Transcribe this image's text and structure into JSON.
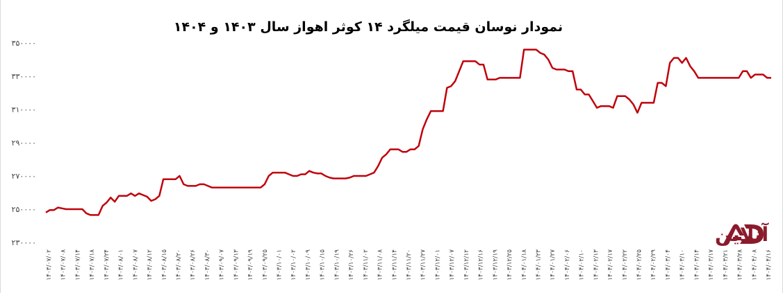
{
  "chart_data": {
    "type": "line",
    "title": "نمودار نوسان قیمت میلگرد ۱۴ کوثر اهواز سال ۱۴۰۳ و ۱۴۰۴",
    "xlabel": "",
    "ylabel": "",
    "ylim": [
      230000,
      350000
    ],
    "yticks": [
      230000,
      250000,
      270000,
      290000,
      310000,
      330000,
      350000
    ],
    "ytick_labels": [
      "۲۳۰۰۰۰",
      "۲۵۰۰۰۰",
      "۲۷۰۰۰۰",
      "۲۹۰۰۰۰",
      "۳۱۰۰۰۰",
      "۳۳۰۰۰۰",
      "۳۵۰۰۰۰"
    ],
    "xtick_labels": [
      "۱۴۰۳/۰۷/۰۲",
      "۱۴۰۳/۰۷/۰۸",
      "۱۴۰۳/۰۷/۱۴",
      "۱۴۰۳/۰۷/۱۸",
      "۱۴۰۳/۰۷/۲۴",
      "۱۴۰۳/۰۸/۰۱",
      "۱۴۰۳/۰۸/۰۷",
      "۱۴۰۳/۰۸/۱۲",
      "۱۴۰۳/۰۸/۱۵",
      "۱۴۰۳/۰۸/۲۰",
      "۱۴۰۳/۰۸/۲۶",
      "۱۴۰۳/۰۸/۳۰",
      "۱۴۰۳/۰۹/۰۷",
      "۱۴۰۳/۰۹/۱۳",
      "۱۴۰۳/۰۹/۱۹",
      "۱۴۰۳/۰۹/۲۵",
      "۱۴۰۳/۱۰/۰۱",
      "۱۴۰۳/۱۰/۰۲",
      "۱۴۰۳/۱۰/۰۹",
      "۱۴۰۳/۱۰/۱۵",
      "۱۴۰۳/۱۰/۱۹",
      "۱۴۰۳/۱۰/۲۶",
      "۱۴۰۳/۱۱/۰۲",
      "۱۴۰۳/۱۱/۰۸",
      "۱۴۰۳/۱۱/۱۴",
      "۱۴۰۳/۱۱/۲۰",
      "۱۴۰۳/۱۱/۲۷",
      "۱۴۰۳/۱۲/۰۱",
      "۱۴۰۳/۱۲/۰۷",
      "۱۴۰۳/۱۲/۱۲",
      "۱۴۰۳/۱۲/۱۶",
      "۱۴۰۳/۱۲/۱۹",
      "۱۴۰۳/۱۲/۲۵",
      "۱۴۰۴/۰۱/۱۸",
      "۱۴۰۴/۰۱/۲۳",
      "۱۴۰۴/۰۱/۲۷",
      "۱۴۰۴/۰۲/۰۶",
      "۱۴۰۴/۰۲/۱۰",
      "۱۴۰۴/۰۲/۱۳",
      "۱۴۰۴/۰۲/۱۷",
      "۱۴۰۴/۰۲/۲۲",
      "۱۴۰۴/۰۲/۲۵",
      "۱۴۰۴/۰۲/۲۹",
      "۱۴۰۴/۰۳/۰۴",
      "۱۴۰۴/۰۳/۱۰",
      "۱۴۰۴/۰۳/۱۴",
      "۱۴۰۴/۰۳/۱۷",
      "۱۴۰۴/۰۳/۲۱",
      "۱۴۰۴/۰۳/۲۸",
      "۱۴۰۴/۰۴/۰۸",
      "۱۴۰۴/۰۴/۱۶"
    ],
    "series": [
      {
        "color": "#c0000b",
        "values": [
          248000,
          249500,
          249500,
          251000,
          250500,
          250000,
          250000,
          250000,
          250000,
          250000,
          247500,
          246500,
          246500,
          246500,
          252000,
          254000,
          257000,
          254500,
          258000,
          258000,
          258000,
          259500,
          258000,
          259500,
          258500,
          257500,
          255000,
          256000,
          258000,
          268000,
          268000,
          268000,
          268000,
          270000,
          265000,
          264000,
          264000,
          264000,
          265000,
          265000,
          264000,
          263000,
          263000,
          263000,
          263000,
          263000,
          263000,
          263000,
          263000,
          263000,
          263000,
          263000,
          263000,
          263000,
          265000,
          270000,
          272000,
          272000,
          272000,
          272000,
          271000,
          270000,
          270000,
          271000,
          271000,
          273000,
          272000,
          271500,
          271500,
          270000,
          269000,
          268500,
          268500,
          268500,
          268500,
          269000,
          270000,
          270000,
          270000,
          270000,
          271000,
          272000,
          276000,
          281000,
          283000,
          286000,
          286000,
          286000,
          284500,
          284500,
          286000,
          286000,
          288000,
          298000,
          304000,
          309000,
          309000,
          309000,
          309000,
          323000,
          324000,
          327000,
          333000,
          339000,
          339000,
          339000,
          339000,
          337000,
          337000,
          328000,
          328000,
          328000,
          329000,
          329000,
          329000,
          329000,
          329000,
          329000,
          346000,
          346000,
          346000,
          346000,
          344000,
          343000,
          340000,
          335000,
          334000,
          334000,
          334000,
          333000,
          333000,
          322000,
          322000,
          319000,
          319000,
          315000,
          311000,
          312000,
          312000,
          312000,
          311000,
          318000,
          318000,
          318000,
          316000,
          313000,
          308000,
          314000,
          314000,
          314000,
          314000,
          326000,
          326000,
          324000,
          338000,
          341000,
          341000,
          338000,
          341000,
          336000,
          333000,
          329000,
          329000,
          329000,
          329000,
          329000,
          329000,
          329000,
          329000,
          329000,
          329000,
          329000,
          333000,
          333000,
          329000,
          331000,
          331000,
          331000,
          329000,
          329000
        ]
      }
    ],
    "grid": false,
    "legend": "none"
  },
  "watermark": {
    "text": "آهن آنلاین",
    "color": "#8b1a2c"
  }
}
